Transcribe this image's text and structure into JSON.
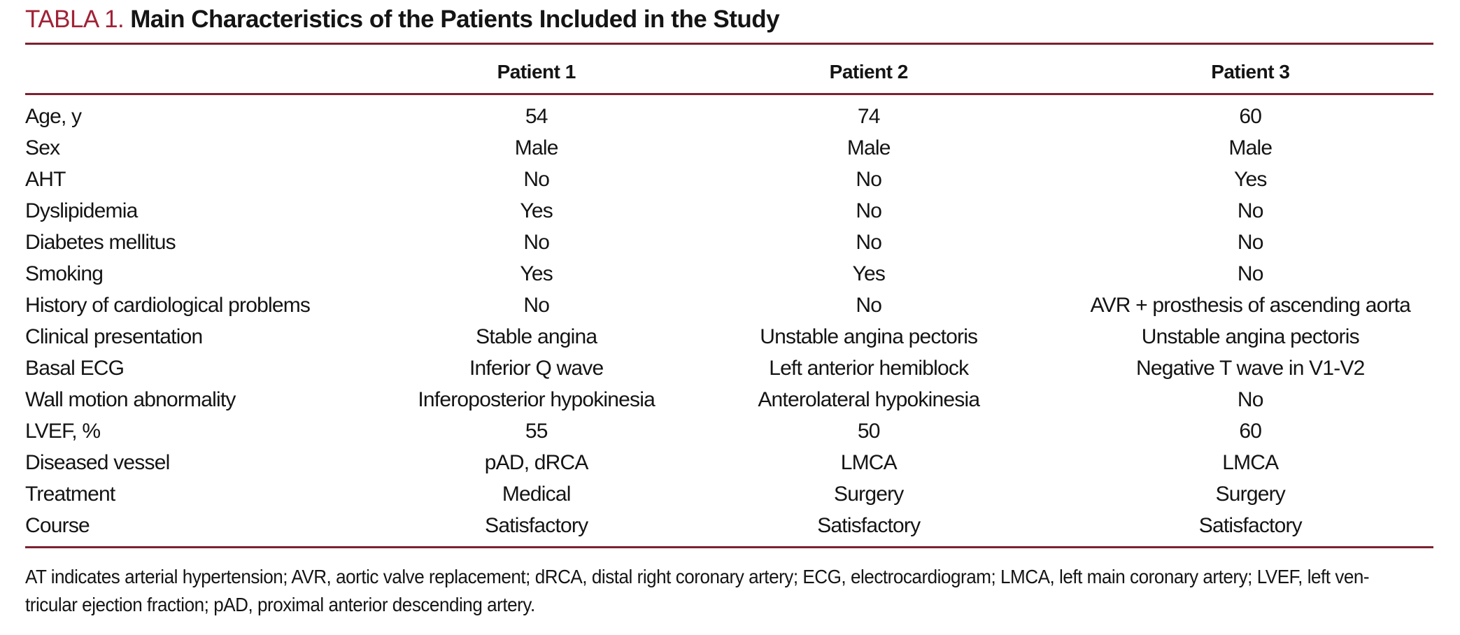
{
  "title": {
    "table_label": "TABLA 1.",
    "text": "Main Characteristics of the Patients Included in the Study"
  },
  "colors": {
    "accent_red": "#a02337",
    "rule_maroon": "#7b2230",
    "text": "#141414",
    "background": "#ffffff"
  },
  "table": {
    "columns": [
      "Patient 1",
      "Patient 2",
      "Patient 3"
    ],
    "rows": [
      {
        "label": "Age, y",
        "p1": "54",
        "p2": "74",
        "p3": "60"
      },
      {
        "label": "Sex",
        "p1": "Male",
        "p2": "Male",
        "p3": "Male"
      },
      {
        "label": "AHT",
        "p1": "No",
        "p2": "No",
        "p3": "Yes"
      },
      {
        "label": "Dyslipidemia",
        "p1": "Yes",
        "p2": "No",
        "p3": "No"
      },
      {
        "label": "Diabetes mellitus",
        "p1": "No",
        "p2": "No",
        "p3": "No"
      },
      {
        "label": "Smoking",
        "p1": "Yes",
        "p2": "Yes",
        "p3": "No"
      },
      {
        "label": "History of cardiological problems",
        "p1": "No",
        "p2": "No",
        "p3": "AVR + prosthesis of ascending aorta"
      },
      {
        "label": "Clinical presentation",
        "p1": "Stable angina",
        "p2": "Unstable angina pectoris",
        "p3": "Unstable angina pectoris"
      },
      {
        "label": "Basal ECG",
        "p1": "Inferior Q wave",
        "p2": "Left anterior hemiblock",
        "p3": "Negative T wave in V1-V2"
      },
      {
        "label": "Wall motion abnormality",
        "p1": "Inferoposterior hypokinesia",
        "p2": "Anterolateral hypokinesia",
        "p3": "No"
      },
      {
        "label": "LVEF, %",
        "p1": "55",
        "p2": "50",
        "p3": "60"
      },
      {
        "label": "Diseased vessel",
        "p1": "pAD, dRCA",
        "p2": "LMCA",
        "p3": "LMCA"
      },
      {
        "label": "Treatment",
        "p1": "Medical",
        "p2": "Surgery",
        "p3": "Surgery"
      },
      {
        "label": "Course",
        "p1": "Satisfactory",
        "p2": "Satisfactory",
        "p3": "Satisfactory"
      }
    ]
  },
  "footnote": {
    "line1": "AT indicates arterial hypertension; AVR, aortic valve replacement; dRCA, distal right coronary artery; ECG, electrocardiogram; LMCA, left main coronary artery; LVEF, left ven-",
    "line2": "tricular ejection fraction; pAD, proximal anterior descending artery."
  }
}
